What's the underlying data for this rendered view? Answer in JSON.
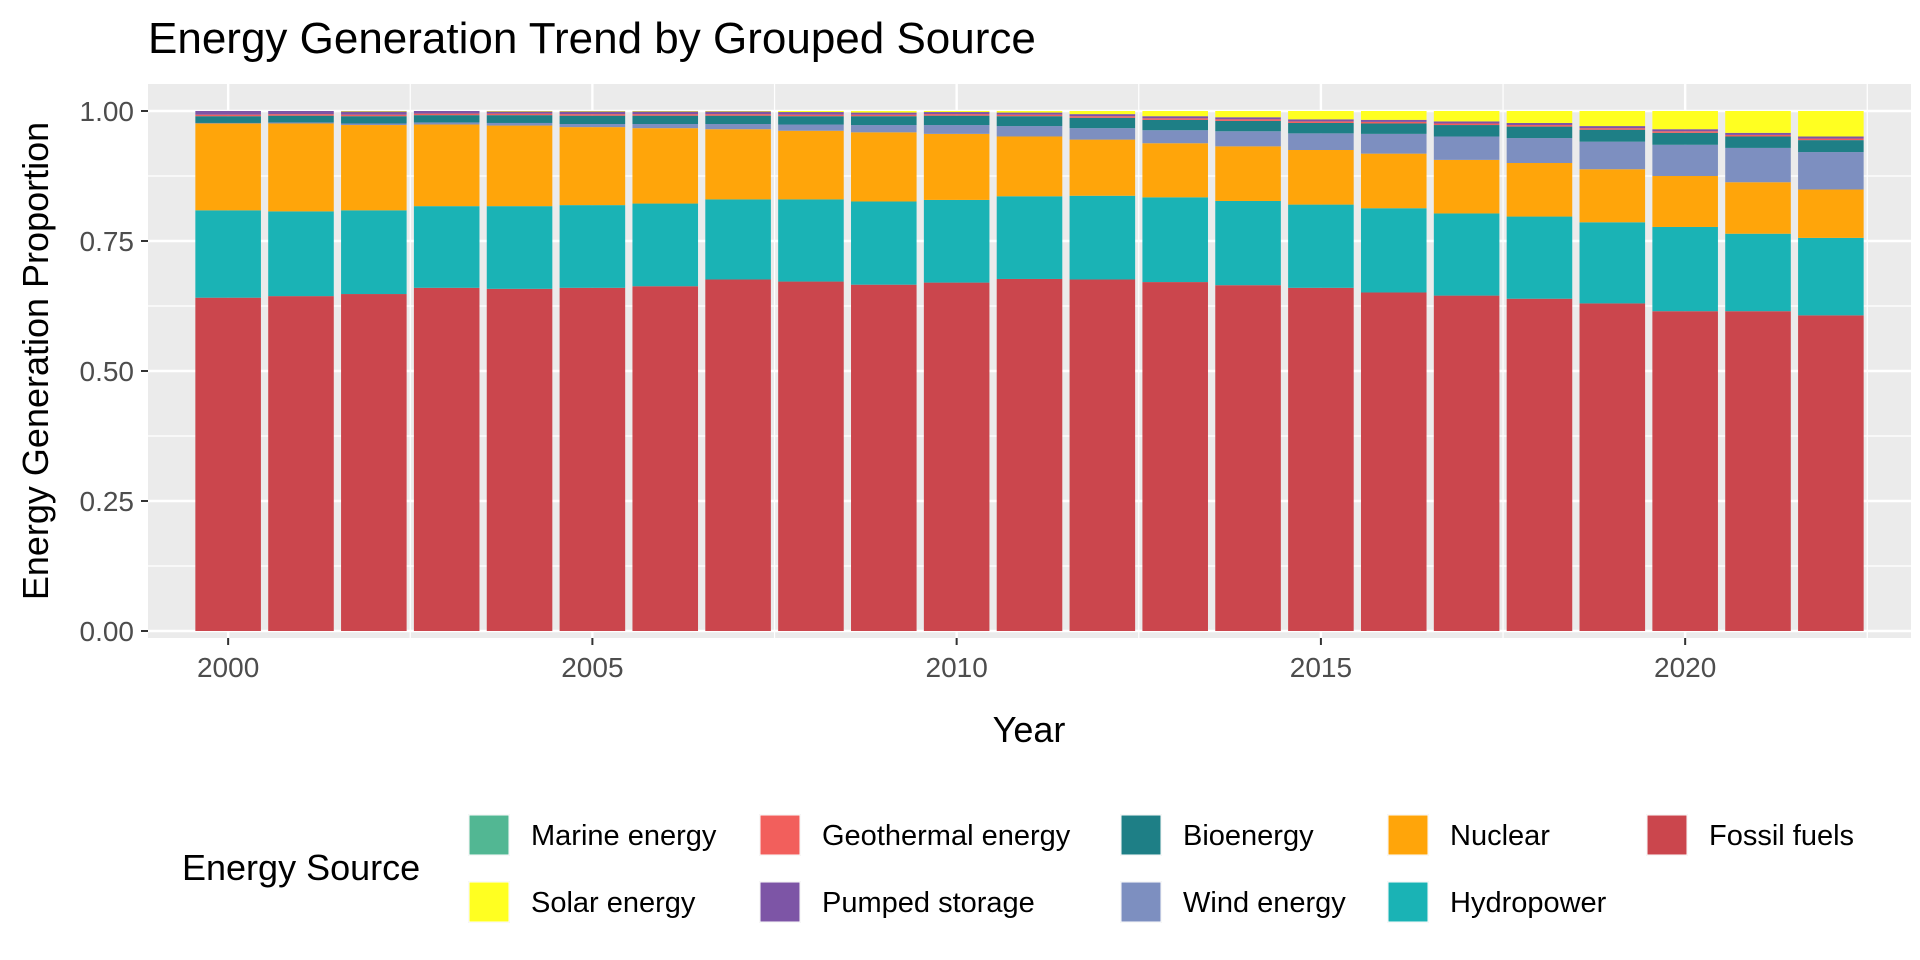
{
  "chart_data": {
    "type": "bar",
    "stacked": true,
    "title": "Energy Generation Trend by Grouped Source",
    "xlabel": "Year",
    "ylabel": "Energy Generation Proportion",
    "ylim": [
      0,
      1.05
    ],
    "xlim": [
      1998.9,
      2023.1
    ],
    "yticks": [
      "0.00",
      "0.25",
      "0.50",
      "0.75",
      "1.00"
    ],
    "ytick_values": [
      0,
      0.25,
      0.5,
      0.75,
      1.0
    ],
    "xticks": [
      "2000",
      "2005",
      "2010",
      "2015",
      "2020"
    ],
    "xtick_values": [
      2000,
      2005,
      2010,
      2015,
      2020
    ],
    "grid": true,
    "legend_title": "Energy Source",
    "legend_position": "bottom",
    "categories": [
      2000,
      2001,
      2002,
      2003,
      2004,
      2005,
      2006,
      2007,
      2008,
      2009,
      2010,
      2011,
      2012,
      2013,
      2014,
      2015,
      2016,
      2017,
      2018,
      2019,
      2020,
      2021,
      2022
    ],
    "series": [
      {
        "name": "Fossil fuels",
        "color": "#CB464D",
        "values": [
          0.641,
          0.644,
          0.648,
          0.66,
          0.658,
          0.66,
          0.663,
          0.676,
          0.672,
          0.666,
          0.67,
          0.677,
          0.676,
          0.671,
          0.665,
          0.66,
          0.651,
          0.645,
          0.639,
          0.63,
          0.615,
          0.615,
          0.607
        ]
      },
      {
        "name": "Hydropower",
        "color": "#1AB3B5",
        "values": [
          0.168,
          0.163,
          0.161,
          0.157,
          0.159,
          0.159,
          0.159,
          0.154,
          0.158,
          0.16,
          0.159,
          0.159,
          0.161,
          0.163,
          0.162,
          0.16,
          0.162,
          0.158,
          0.158,
          0.156,
          0.162,
          0.149,
          0.149
        ]
      },
      {
        "name": "Nuclear",
        "color": "#FFA50A",
        "values": [
          0.167,
          0.169,
          0.164,
          0.157,
          0.155,
          0.15,
          0.145,
          0.135,
          0.132,
          0.133,
          0.127,
          0.115,
          0.108,
          0.104,
          0.105,
          0.105,
          0.105,
          0.103,
          0.103,
          0.102,
          0.098,
          0.099,
          0.093
        ]
      },
      {
        "name": "Wind energy",
        "color": "#7D8FC0",
        "values": [
          0.001,
          0.002,
          0.003,
          0.004,
          0.005,
          0.006,
          0.008,
          0.01,
          0.012,
          0.014,
          0.017,
          0.02,
          0.022,
          0.025,
          0.029,
          0.032,
          0.038,
          0.045,
          0.048,
          0.053,
          0.06,
          0.066,
          0.072
        ]
      },
      {
        "name": "Bioenergy",
        "color": "#1E7F86",
        "values": [
          0.013,
          0.013,
          0.014,
          0.014,
          0.015,
          0.016,
          0.016,
          0.016,
          0.016,
          0.017,
          0.018,
          0.019,
          0.02,
          0.02,
          0.02,
          0.02,
          0.02,
          0.022,
          0.022,
          0.023,
          0.023,
          0.022,
          0.023
        ]
      },
      {
        "name": "Geothermal energy",
        "color": "#F25F5C",
        "values": [
          0.003,
          0.003,
          0.003,
          0.003,
          0.003,
          0.003,
          0.003,
          0.003,
          0.003,
          0.003,
          0.003,
          0.003,
          0.003,
          0.003,
          0.003,
          0.003,
          0.003,
          0.003,
          0.003,
          0.003,
          0.003,
          0.003,
          0.003
        ]
      },
      {
        "name": "Pumped storage",
        "color": "#7D55A6",
        "values": [
          0.007,
          0.006,
          0.006,
          0.005,
          0.004,
          0.005,
          0.005,
          0.005,
          0.005,
          0.004,
          0.004,
          0.004,
          0.004,
          0.004,
          0.004,
          0.004,
          0.004,
          0.004,
          0.004,
          0.004,
          0.004,
          0.004,
          0.004
        ]
      },
      {
        "name": "Solar energy",
        "color": "#FFFF21",
        "values": [
          0.0,
          0.0,
          0.001,
          0.0,
          0.001,
          0.001,
          0.001,
          0.001,
          0.002,
          0.003,
          0.002,
          0.003,
          0.006,
          0.01,
          0.012,
          0.016,
          0.017,
          0.02,
          0.023,
          0.029,
          0.035,
          0.042,
          0.049
        ]
      },
      {
        "name": "Marine energy",
        "color": "#52B793",
        "values": [
          0.0,
          0.0,
          0.0,
          0.0,
          0.0,
          0.0,
          0.0,
          0.0,
          0.0,
          0.0,
          0.0,
          0.0,
          0.0,
          0.0,
          0.0,
          0.0,
          0.0,
          0.0,
          0.0,
          0.0,
          0.0,
          0.0,
          0.0
        ]
      }
    ],
    "legend_rows": [
      [
        "Marine energy",
        "Geothermal energy",
        "Bioenergy",
        "Nuclear",
        "Fossil fuels"
      ],
      [
        "Solar energy",
        "Pumped storage",
        "Wind energy",
        "Hydropower"
      ]
    ]
  }
}
